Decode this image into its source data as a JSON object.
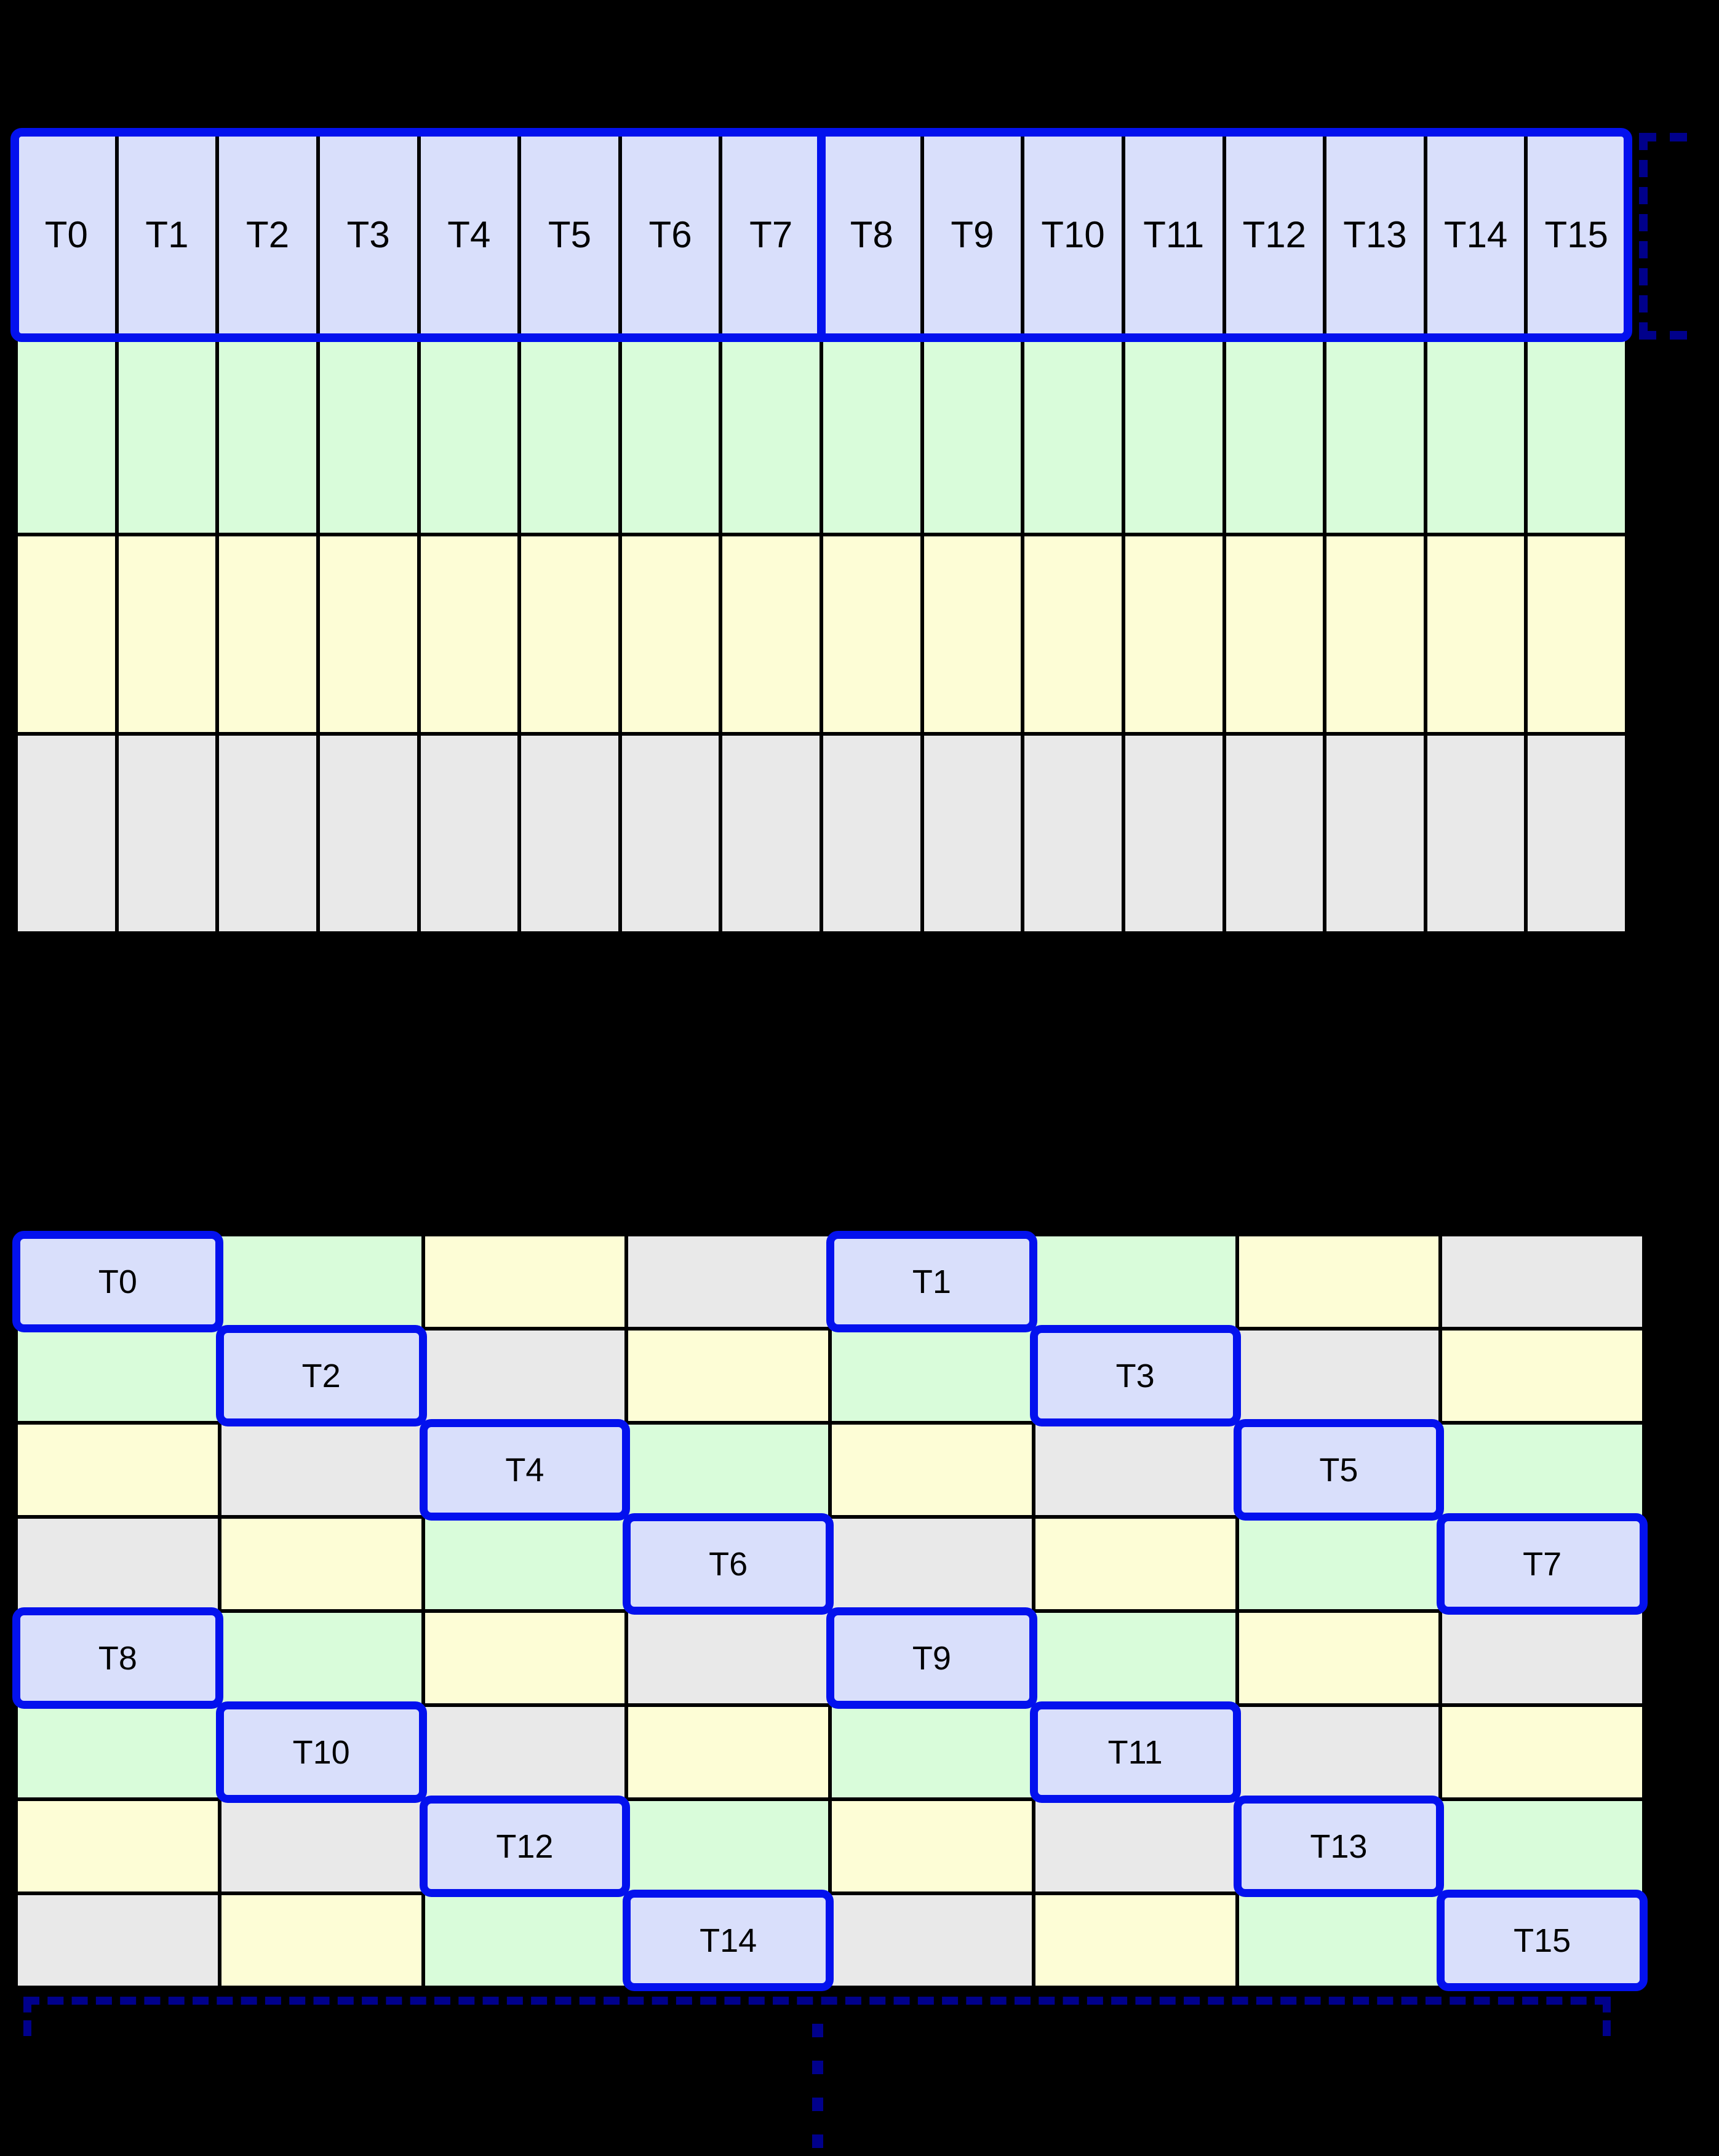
{
  "colors": {
    "lavender": "#d9dffb",
    "green": "#d9fcda",
    "yellow": "#fdfdd6",
    "gray": "#e9e9e9",
    "blue_border": "#0311ee",
    "navy_dashed": "#00008b",
    "grid_line": "#000000",
    "background": "#000000"
  },
  "top_grid": {
    "columns": 16,
    "rows": [
      {
        "color": "lavender",
        "labels": [
          "T0",
          "T1",
          "T2",
          "T3",
          "T4",
          "T5",
          "T6",
          "T7",
          "T8",
          "T9",
          "T10",
          "T11",
          "T12",
          "T13",
          "T14",
          "T15"
        ]
      },
      {
        "color": "green",
        "labels": []
      },
      {
        "color": "yellow",
        "labels": []
      },
      {
        "color": "gray",
        "labels": []
      }
    ],
    "half_split_after_column": 8
  },
  "bottom_grid": {
    "columns": 8,
    "rows": [
      {
        "cells": [
          "lavender",
          "green",
          "yellow",
          "gray",
          "lavender",
          "green",
          "yellow",
          "gray"
        ]
      },
      {
        "cells": [
          "green",
          "lavender",
          "gray",
          "yellow",
          "green",
          "lavender",
          "gray",
          "yellow"
        ]
      },
      {
        "cells": [
          "yellow",
          "gray",
          "lavender",
          "green",
          "yellow",
          "gray",
          "lavender",
          "green"
        ]
      },
      {
        "cells": [
          "gray",
          "yellow",
          "green",
          "lavender",
          "gray",
          "yellow",
          "green",
          "lavender"
        ]
      },
      {
        "cells": [
          "lavender",
          "green",
          "yellow",
          "gray",
          "lavender",
          "green",
          "yellow",
          "gray"
        ]
      },
      {
        "cells": [
          "green",
          "lavender",
          "gray",
          "yellow",
          "green",
          "lavender",
          "gray",
          "yellow"
        ]
      },
      {
        "cells": [
          "yellow",
          "gray",
          "lavender",
          "green",
          "yellow",
          "gray",
          "lavender",
          "green"
        ]
      },
      {
        "cells": [
          "gray",
          "yellow",
          "green",
          "lavender",
          "gray",
          "yellow",
          "green",
          "lavender"
        ]
      }
    ],
    "highlights": [
      {
        "label": "T0",
        "row": 0,
        "col": 0
      },
      {
        "label": "T1",
        "row": 0,
        "col": 4
      },
      {
        "label": "T2",
        "row": 1,
        "col": 1
      },
      {
        "label": "T3",
        "row": 1,
        "col": 5
      },
      {
        "label": "T4",
        "row": 2,
        "col": 2
      },
      {
        "label": "T5",
        "row": 2,
        "col": 6
      },
      {
        "label": "T6",
        "row": 3,
        "col": 3
      },
      {
        "label": "T7",
        "row": 3,
        "col": 7
      },
      {
        "label": "T8",
        "row": 4,
        "col": 0
      },
      {
        "label": "T9",
        "row": 4,
        "col": 4
      },
      {
        "label": "T10",
        "row": 5,
        "col": 1
      },
      {
        "label": "T11",
        "row": 5,
        "col": 5
      },
      {
        "label": "T12",
        "row": 6,
        "col": 2
      },
      {
        "label": "T13",
        "row": 6,
        "col": 6
      },
      {
        "label": "T14",
        "row": 7,
        "col": 3
      },
      {
        "label": "T15",
        "row": 7,
        "col": 7
      }
    ]
  },
  "annotations": {
    "header_bracket_icon": "dashed-right-bracket",
    "width_bracket_icon": "dashed-span-bracket",
    "continuation_icon": "vertical-ellipsis"
  }
}
